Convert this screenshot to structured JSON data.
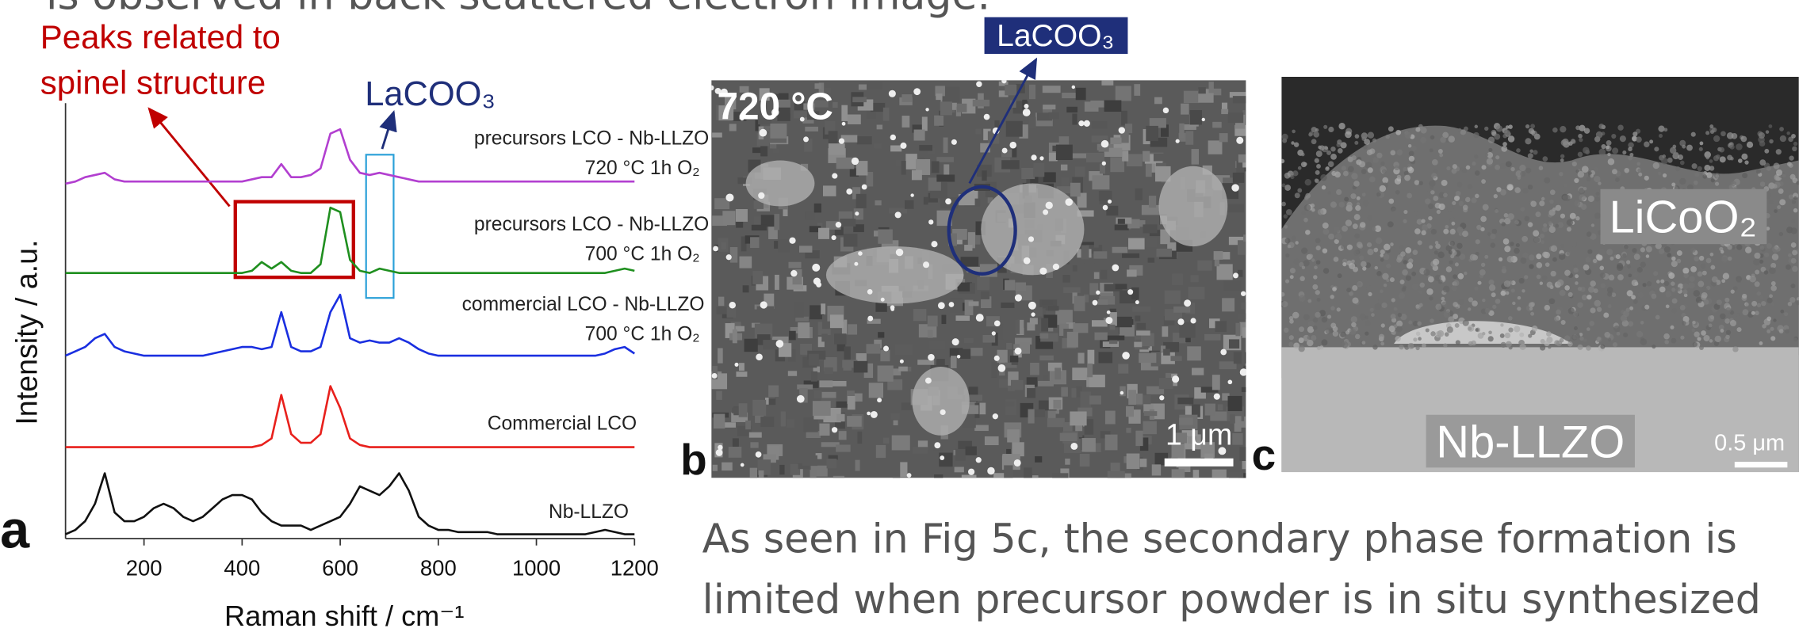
{
  "header": {
    "text": "is observed in back scattered electron image."
  },
  "chart_data": {
    "type": "line",
    "panel_label": "a",
    "x_label": "Raman shift / cm⁻¹",
    "y_label": "Intensity / a.u.",
    "xlim": [
      40,
      1200
    ],
    "xticks": [
      200,
      400,
      600,
      800,
      1000,
      1200
    ],
    "ylim": [
      0,
      100
    ],
    "x": [
      40,
      60,
      80,
      100,
      120,
      140,
      160,
      180,
      200,
      220,
      240,
      260,
      280,
      300,
      320,
      340,
      360,
      380,
      400,
      420,
      440,
      460,
      480,
      500,
      520,
      540,
      560,
      580,
      600,
      620,
      640,
      660,
      680,
      700,
      720,
      740,
      760,
      780,
      800,
      820,
      840,
      860,
      880,
      900,
      920,
      940,
      960,
      980,
      1000,
      1020,
      1040,
      1060,
      1080,
      1100,
      1120,
      1140,
      1160,
      1180,
      1200
    ],
    "series": [
      {
        "name": "precursors LCO - Nb-LLZO",
        "condition": "720 °C 1h O₂",
        "color": "#b23fd0",
        "values": [
          81.5,
          82,
          83,
          83.5,
          84,
          82.5,
          82,
          82,
          82,
          82,
          82,
          82,
          82,
          82,
          82,
          82,
          82,
          82,
          82,
          82.5,
          83,
          83,
          86,
          83,
          83,
          83.5,
          85,
          93,
          94,
          87,
          84,
          83.5,
          84,
          83.5,
          83,
          82.5,
          82,
          82,
          82,
          82,
          82,
          82,
          82,
          82,
          82,
          82,
          82,
          82,
          82,
          82,
          82,
          82,
          82,
          82,
          82,
          82,
          82,
          82,
          82
        ]
      },
      {
        "name": "precursors LCO - Nb-LLZO",
        "condition": "700 °C 1h O₂",
        "color": "#1f8f1f",
        "values": [
          61,
          61,
          61,
          61,
          61,
          61,
          61,
          61,
          61,
          61,
          61,
          61,
          61,
          61,
          61,
          61,
          61,
          61,
          61,
          61.5,
          63.5,
          62,
          63.5,
          61.5,
          61,
          61,
          63,
          76,
          75,
          64,
          61.5,
          61,
          62,
          61.5,
          61,
          61,
          61,
          61,
          61,
          61,
          61,
          61,
          61,
          61,
          61,
          61,
          61,
          61,
          61,
          61,
          61,
          61,
          61,
          61,
          61,
          61,
          61.5,
          62,
          61.5
        ]
      },
      {
        "name": "commercial LCO - Nb-LLZO",
        "condition": "700 °C 1h O₂",
        "color": "#1a2fe0",
        "values": [
          42,
          43,
          44,
          46,
          47,
          44,
          43,
          42.5,
          42,
          42,
          42,
          42,
          42,
          42,
          42,
          42.5,
          43,
          43.5,
          44,
          44,
          43.5,
          44,
          52,
          44,
          43,
          43,
          44,
          52,
          56,
          46,
          45,
          45.5,
          45,
          45,
          46,
          45,
          43.5,
          42.5,
          42,
          42,
          42,
          42,
          42,
          42,
          42,
          42,
          42,
          42,
          42,
          42,
          42,
          42,
          42,
          42,
          42,
          42.5,
          43.5,
          44,
          42.5
        ]
      },
      {
        "name": "Commercial LCO",
        "color": "#e8201c",
        "values": [
          21,
          21,
          21,
          21,
          21,
          21,
          21,
          21,
          21,
          21,
          21,
          21,
          21,
          21,
          21,
          21,
          21,
          21,
          21,
          21,
          21.5,
          23,
          33,
          24,
          22,
          22,
          24,
          35,
          30,
          23,
          21.5,
          21,
          21,
          21,
          21,
          21,
          21,
          21,
          21,
          21,
          21,
          21,
          21,
          21,
          21,
          21,
          21,
          21,
          21,
          21,
          21,
          21,
          21,
          21,
          21,
          21,
          21,
          21,
          21
        ]
      },
      {
        "name": "Nb-LLZO",
        "color": "#111111",
        "values": [
          1,
          2,
          4,
          8,
          15,
          6,
          4,
          4,
          5,
          7,
          8,
          7,
          5,
          4,
          5,
          7,
          9,
          10,
          10,
          9,
          6,
          4,
          3,
          3,
          3,
          2,
          3,
          4,
          5,
          8,
          12,
          11,
          10,
          12,
          15,
          11,
          5,
          3,
          2,
          2,
          1.5,
          1.5,
          1.5,
          1.5,
          1,
          1,
          1,
          1,
          1,
          1,
          1,
          1,
          1,
          1,
          1.5,
          2,
          1.5,
          1,
          1
        ]
      }
    ],
    "annotations": [
      {
        "lines": [
          "Peaks related to",
          "spinel structure"
        ],
        "color": "#c00000"
      },
      {
        "text": "LaCOO₃",
        "color": "#1f2f7a"
      }
    ]
  },
  "panel_b": {
    "label": "b",
    "temperature": "720 °C",
    "scale": "1 μm",
    "annotation": "LaCOO₃"
  },
  "panel_c": {
    "label": "c",
    "layer_top": "LiCoO₂",
    "layer_bottom": "Nb-LLZO",
    "scale": "0.5 μm"
  },
  "body": {
    "lines": [
      "As seen in Fig 5c, the secondary phase formation is",
      "limited when precursor powder is in situ synthesized"
    ]
  }
}
